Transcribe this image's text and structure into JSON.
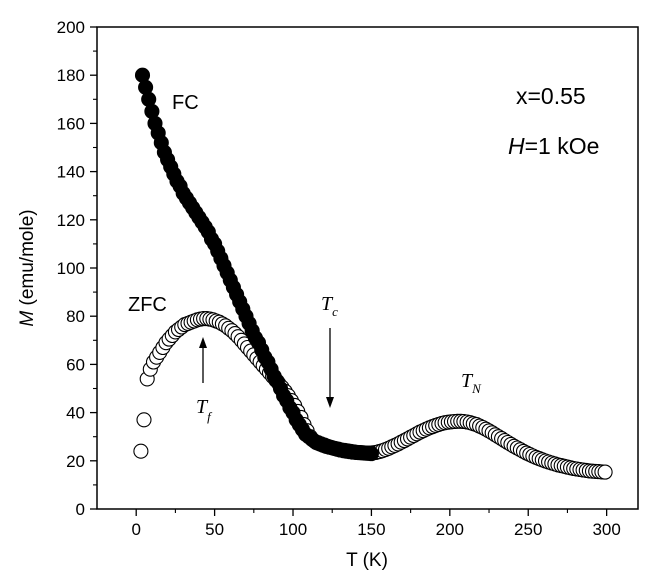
{
  "chart_data": {
    "type": "scatter",
    "xlabel": "T (K)",
    "ylabel_symbol": "M",
    "ylabel_unit": " (emu/mole)",
    "xlim": [
      -25,
      320
    ],
    "ylim": [
      0,
      200
    ],
    "xticks": [
      0,
      50,
      100,
      150,
      200,
      250,
      300
    ],
    "yticks": [
      0,
      20,
      40,
      60,
      80,
      100,
      120,
      140,
      160,
      180,
      200
    ],
    "grid": false,
    "annotations": {
      "composition": "x=0.55",
      "field_symbol": "H",
      "field_value": "=1 kOe",
      "tc_main": "T",
      "tc_sub": "c",
      "tf_main": "T",
      "tf_sub": "f",
      "tn_main": "T",
      "tn_sub": "N"
    },
    "series": [
      {
        "name": "FC",
        "marker": "filled-circle",
        "color": "#000000",
        "x": [
          4,
          6,
          8,
          10,
          12,
          14,
          16,
          18,
          20,
          22,
          24,
          26,
          28,
          30,
          32,
          34,
          36,
          38,
          40,
          42,
          44,
          46,
          48,
          50,
          52,
          54,
          56,
          58,
          60,
          62,
          64,
          66,
          68,
          70,
          72,
          74,
          76,
          78,
          80,
          82,
          84,
          86,
          88,
          90,
          92,
          94,
          96,
          98,
          100,
          102,
          104,
          106,
          108,
          110,
          112,
          114,
          116,
          118,
          120,
          122,
          124,
          126,
          128,
          130,
          132,
          134,
          136,
          138,
          140,
          142,
          144,
          146,
          148,
          150
        ],
        "y": [
          180,
          175,
          170,
          165,
          160,
          156,
          152,
          148,
          145,
          142,
          139,
          136,
          134,
          131,
          129,
          127,
          125,
          123,
          121,
          119,
          117,
          115,
          112,
          110,
          107,
          104,
          101,
          98,
          95,
          92,
          89,
          86,
          83,
          80,
          77,
          74,
          71,
          69,
          66,
          63,
          61,
          58,
          55,
          53,
          50,
          47,
          45,
          42,
          40,
          37,
          35,
          33,
          31,
          30,
          29,
          28,
          27.5,
          27,
          26.5,
          26,
          25.6,
          25.2,
          24.8,
          24.5,
          24.2,
          24,
          23.8,
          23.6,
          23.5,
          23.4,
          23.3,
          23.2,
          23.1,
          23
        ]
      },
      {
        "name": "ZFC",
        "marker": "open-circle",
        "color": "#000000",
        "x": [
          3,
          5,
          7,
          9,
          11,
          13,
          15,
          17,
          19,
          21,
          23,
          25,
          27,
          29,
          31,
          33,
          35,
          37,
          39,
          41,
          43,
          45,
          47,
          49,
          51,
          53,
          55,
          57,
          59,
          61,
          63,
          65,
          67,
          69,
          71,
          73,
          75,
          77,
          79,
          81,
          83,
          85,
          87,
          89,
          91,
          93,
          95,
          97,
          99,
          101,
          103,
          105,
          107,
          109,
          111,
          113,
          115,
          117,
          119,
          121,
          123,
          125,
          127,
          129,
          131,
          133,
          135,
          137,
          139,
          141,
          143,
          145,
          147,
          149,
          151,
          153,
          155,
          157,
          159,
          161,
          163,
          165,
          167,
          169,
          171,
          173,
          175,
          177,
          179,
          181,
          183,
          185,
          187,
          189,
          191,
          193,
          195,
          197,
          199,
          201,
          203,
          205,
          207,
          209,
          211,
          213,
          215,
          217,
          219,
          221,
          223,
          225,
          227,
          229,
          231,
          233,
          235,
          237,
          239,
          241,
          243,
          245,
          247,
          249,
          251,
          253,
          255,
          257,
          259,
          261,
          263,
          265,
          267,
          269,
          271,
          273,
          275,
          277,
          279,
          281,
          283,
          285,
          287,
          289,
          291,
          293,
          295,
          297,
          299
        ],
        "y": [
          24,
          37,
          54,
          58,
          61,
          63,
          65,
          67,
          69,
          70.5,
          72,
          73.5,
          74.5,
          75.5,
          76.5,
          77,
          77.5,
          78,
          78.5,
          78.8,
          79,
          79,
          78.8,
          78.5,
          78,
          77.5,
          76.8,
          76,
          75,
          74,
          72.8,
          71.5,
          70,
          68.5,
          67,
          65.5,
          64,
          62.5,
          61,
          59.5,
          58,
          56.5,
          55,
          53.5,
          52,
          50.5,
          48.8,
          47,
          45,
          43,
          40.5,
          38,
          35,
          32.5,
          30,
          28.5,
          27.5,
          27,
          26.5,
          26,
          25.7,
          25.4,
          25.1,
          24.8,
          24.5,
          24.3,
          24.1,
          23.9,
          23.7,
          23.5,
          23.4,
          23.3,
          23.2,
          23.2,
          23.3,
          23.5,
          23.8,
          24.2,
          24.7,
          25.2,
          25.8,
          26.4,
          27,
          27.7,
          28.4,
          29.1,
          29.8,
          30.5,
          31.2,
          31.9,
          32.5,
          33.1,
          33.7,
          34.2,
          34.7,
          35.1,
          35.5,
          35.8,
          36,
          36.2,
          36.3,
          36.4,
          36.4,
          36.3,
          36.1,
          35.8,
          35.4,
          35,
          34.4,
          33.8,
          33.1,
          32.4,
          31.6,
          30.8,
          30,
          29.2,
          28.4,
          27.6,
          26.8,
          26,
          25.3,
          24.6,
          23.9,
          23.2,
          22.6,
          22,
          21.4,
          20.9,
          20.4,
          19.9,
          19.5,
          19.1,
          18.7,
          18.3,
          18,
          17.7,
          17.4,
          17.1,
          16.8,
          16.6,
          16.4,
          16.2,
          16,
          15.8,
          15.7,
          15.6,
          15.5,
          15.4,
          15.3
        ]
      }
    ]
  }
}
